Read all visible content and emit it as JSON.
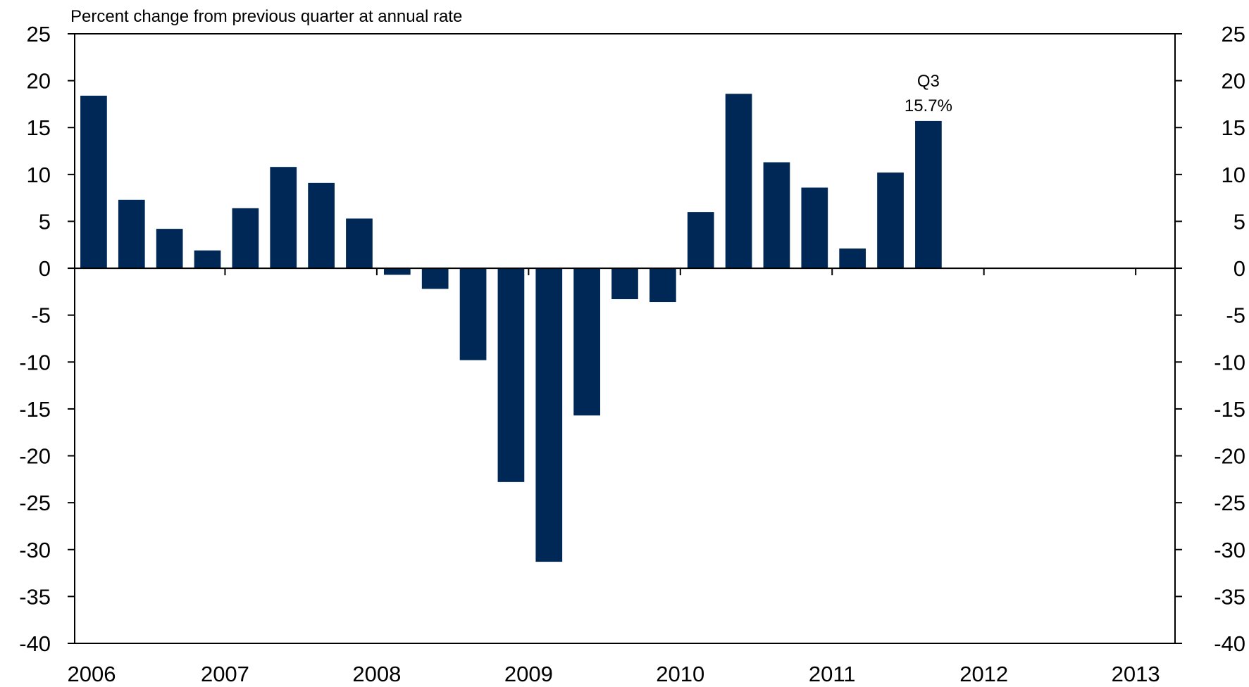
{
  "chart_data": {
    "type": "bar",
    "title": "",
    "subtitle": "Percent change from previous quarter at annual rate",
    "xlabel": "",
    "ylabel": "",
    "ylim": [
      -40,
      25
    ],
    "yticks": [
      25,
      20,
      15,
      10,
      5,
      0,
      -5,
      -10,
      -15,
      -20,
      -25,
      -30,
      -35,
      -40
    ],
    "year_labels": [
      "2006",
      "2007",
      "2008",
      "2009",
      "2010",
      "2011",
      "2012",
      "2013"
    ],
    "categories": [
      "2006 Q1",
      "2006 Q2",
      "2006 Q3",
      "2006 Q4",
      "2007 Q1",
      "2007 Q2",
      "2007 Q3",
      "2007 Q4",
      "2008 Q1",
      "2008 Q2",
      "2008 Q3",
      "2008 Q4",
      "2009 Q1",
      "2009 Q2",
      "2009 Q3",
      "2009 Q4",
      "2010 Q1",
      "2010 Q2",
      "2010 Q3",
      "2010 Q4",
      "2011 Q1",
      "2011 Q2",
      "2011 Q3"
    ],
    "values": [
      18.4,
      7.3,
      4.2,
      1.9,
      6.4,
      10.8,
      9.1,
      5.3,
      -0.7,
      -2.2,
      -9.8,
      -22.8,
      -31.3,
      -15.7,
      -3.3,
      -3.6,
      6.0,
      18.6,
      11.3,
      8.6,
      2.1,
      10.2,
      15.7
    ],
    "bar_color": "#002856",
    "grid": false,
    "legend": "none",
    "annotation": {
      "line1": "Q3",
      "line2": "15.7%",
      "category_index": 22
    }
  }
}
